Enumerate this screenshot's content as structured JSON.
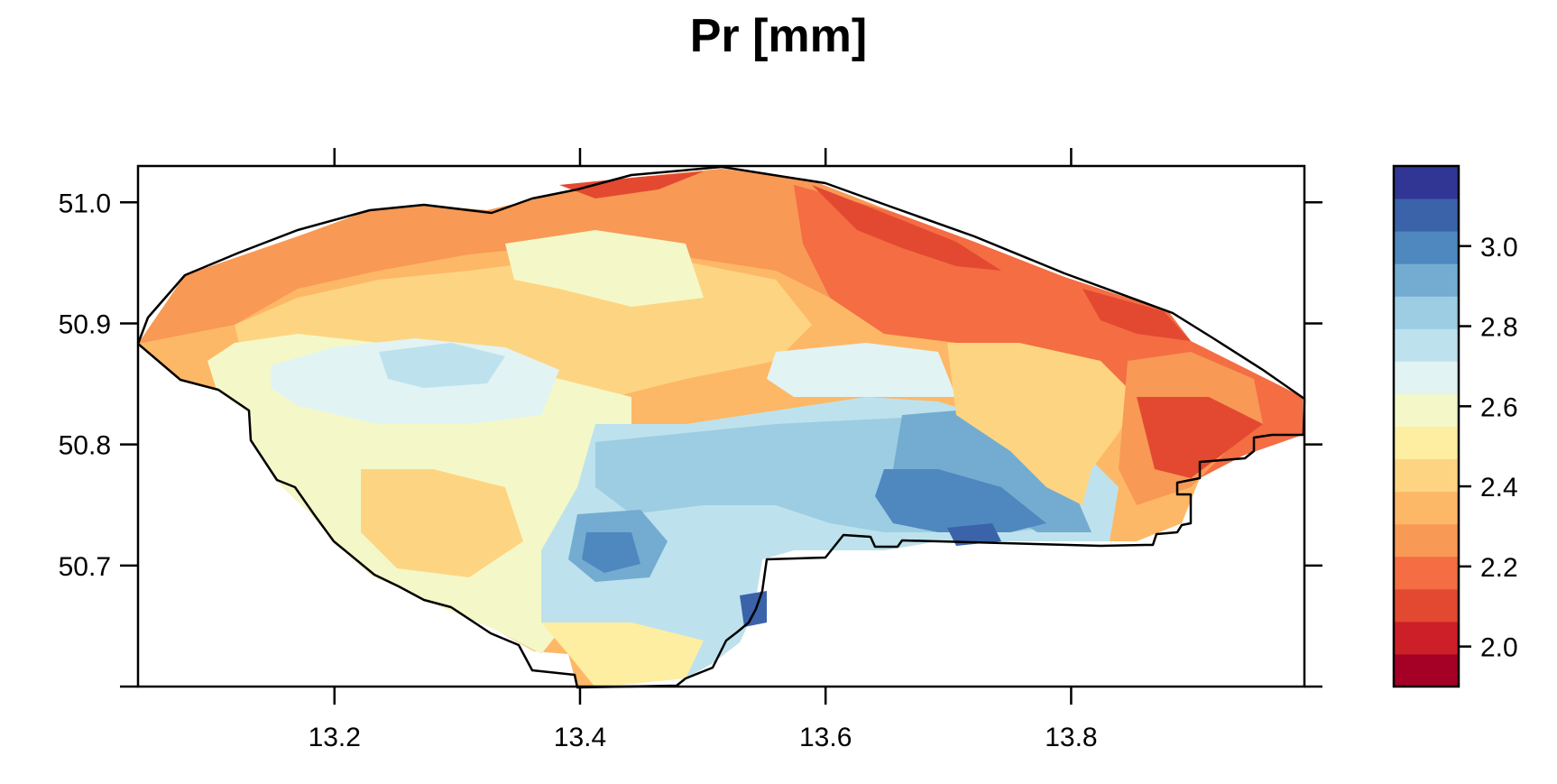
{
  "title": "Pr [mm]",
  "map_data": {
    "type": "raster-map",
    "variable": "Pr [mm]",
    "x_ticks": [
      "13.2",
      "13.4",
      "13.6",
      "13.8"
    ],
    "y_ticks": [
      "50.7",
      "50.8",
      "50.9",
      "51.0"
    ],
    "xlim": [
      13.04,
      13.99
    ],
    "ylim": [
      50.6,
      51.03
    ],
    "colorbar": {
      "ticks": [
        "2.0",
        "2.2",
        "2.4",
        "2.6",
        "2.8",
        "3.0"
      ],
      "range": [
        1.9,
        3.2
      ],
      "colors": [
        "#a50026",
        "#cc1f27",
        "#e34931",
        "#f46d43",
        "#f89955",
        "#fdb867",
        "#fdd582",
        "#feeea2",
        "#f4f8c8",
        "#e2f3f4",
        "#bde2ed",
        "#9ccde3",
        "#74acd1",
        "#4f88bf",
        "#3a63aa",
        "#313695"
      ]
    }
  }
}
